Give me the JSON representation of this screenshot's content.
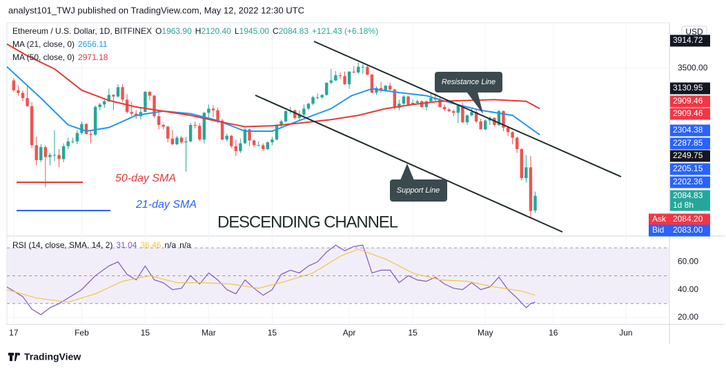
{
  "header": "analyst101_TWJ published on TradingView.com, May 12, 2022 12:30 UTC",
  "footer": "TradingView",
  "annotations": {
    "sma50": "50-day SMA",
    "sma21": "21-day SMA",
    "channel": "DESCENDING CHANNEL",
    "resistance": "Resistance Line",
    "support": "Support Line"
  },
  "chart_data": {
    "type": "candlestick",
    "symbol": "Ethereum / U.S. Dollar, 1D, BITFINEX",
    "ohlc_legend": [
      {
        "key": "O",
        "label": "1963.90"
      },
      {
        "key": "H",
        "label": "2120.40"
      },
      {
        "key": "L",
        "label": "1945.00"
      },
      {
        "key": "C",
        "label": "2084.83"
      }
    ],
    "change": "+121.43 (+6.18%)",
    "currency": "USD",
    "up_color": "#26a69a",
    "down_color": "#ef5350",
    "x": [
      0,
      1,
      2,
      3,
      4,
      5,
      6,
      7,
      8,
      9,
      10,
      11,
      12,
      13,
      14,
      15,
      16,
      17,
      18,
      19,
      20,
      21,
      22,
      23,
      24,
      25,
      26,
      27,
      28,
      29,
      30,
      31,
      32,
      33,
      34,
      35,
      36,
      37,
      38,
      39,
      40,
      41,
      42,
      43,
      44,
      45,
      46,
      47,
      48,
      49,
      50,
      51,
      52,
      53,
      54,
      55,
      56,
      57,
      58,
      59,
      60,
      61,
      62,
      63,
      64,
      65,
      66,
      67,
      68,
      69,
      70,
      71,
      72,
      73,
      74,
      75,
      76,
      77,
      78,
      79,
      80,
      81,
      82,
      83,
      84,
      85,
      86,
      87,
      88,
      89,
      90,
      91,
      92,
      93,
      94,
      95,
      96,
      97,
      98,
      99,
      100,
      101,
      102,
      103,
      104,
      105,
      106,
      107,
      108,
      109,
      110,
      111,
      112,
      113,
      114,
      115
    ],
    "ohlc": [
      [
        3330,
        3360,
        3180,
        3200
      ],
      [
        3200,
        3260,
        3130,
        3165
      ],
      [
        3165,
        3200,
        3060,
        3100
      ],
      [
        3100,
        3270,
        2990,
        3000
      ],
      [
        3000,
        3050,
        2530,
        2560
      ],
      [
        2560,
        2650,
        2360,
        2410
      ],
      [
        2410,
        2570,
        2390,
        2540
      ],
      [
        2540,
        2560,
        2160,
        2440
      ],
      [
        2440,
        2480,
        2360,
        2460
      ],
      [
        2460,
        2720,
        2400,
        2460
      ],
      [
        2460,
        2520,
        2340,
        2420
      ],
      [
        2420,
        2580,
        2390,
        2550
      ],
      [
        2550,
        2640,
        2520,
        2600
      ],
      [
        2600,
        2640,
        2580,
        2600
      ],
      [
        2600,
        2720,
        2570,
        2690
      ],
      [
        2690,
        2820,
        2670,
        2790
      ],
      [
        2790,
        2800,
        2670,
        2680
      ],
      [
        2680,
        2720,
        2580,
        2670
      ],
      [
        2670,
        3010,
        2660,
        2990
      ],
      [
        2990,
        3040,
        2950,
        3020
      ],
      [
        3020,
        3080,
        2980,
        3060
      ],
      [
        3060,
        3220,
        3050,
        3140
      ],
      [
        3140,
        3150,
        2950,
        3120
      ],
      [
        3120,
        3280,
        3110,
        3240
      ],
      [
        3240,
        3280,
        3050,
        3080
      ],
      [
        3080,
        3150,
        2910,
        2930
      ],
      [
        2930,
        3050,
        2880,
        2910
      ],
      [
        2910,
        2950,
        2850,
        2880
      ],
      [
        2880,
        2980,
        2840,
        2930
      ],
      [
        2930,
        3190,
        2930,
        3180
      ],
      [
        3180,
        3190,
        3070,
        3130
      ],
      [
        3130,
        3140,
        2860,
        2880
      ],
      [
        2880,
        2940,
        2730,
        2780
      ],
      [
        2780,
        2790,
        2730,
        2760
      ],
      [
        2760,
        2770,
        2590,
        2630
      ],
      [
        2630,
        2720,
        2560,
        2570
      ],
      [
        2570,
        2660,
        2560,
        2640
      ],
      [
        2640,
        2660,
        2570,
        2590
      ],
      [
        2590,
        2650,
        2300,
        2600
      ],
      [
        2600,
        2800,
        2590,
        2780
      ],
      [
        2780,
        2820,
        2740,
        2770
      ],
      [
        2770,
        2800,
        2600,
        2620
      ],
      [
        2620,
        2930,
        2580,
        2920
      ],
      [
        2920,
        3020,
        2860,
        2970
      ],
      [
        2970,
        3010,
        2870,
        2950
      ],
      [
        2950,
        2980,
        2800,
        2830
      ],
      [
        2830,
        2850,
        2610,
        2620
      ],
      [
        2620,
        2680,
        2600,
        2660
      ],
      [
        2660,
        2670,
        2530,
        2550
      ],
      [
        2550,
        2620,
        2450,
        2500
      ],
      [
        2500,
        2630,
        2480,
        2580
      ],
      [
        2580,
        2760,
        2570,
        2730
      ],
      [
        2730,
        2740,
        2550,
        2610
      ],
      [
        2610,
        2620,
        2540,
        2560
      ],
      [
        2560,
        2600,
        2550,
        2560
      ],
      [
        2560,
        2580,
        2500,
        2520
      ],
      [
        2520,
        2600,
        2510,
        2590
      ],
      [
        2590,
        2650,
        2560,
        2620
      ],
      [
        2620,
        2790,
        2610,
        2770
      ],
      [
        2770,
        2840,
        2760,
        2820
      ],
      [
        2820,
        2950,
        2810,
        2940
      ],
      [
        2940,
        2990,
        2910,
        2950
      ],
      [
        2950,
        2960,
        2840,
        2860
      ],
      [
        2860,
        2950,
        2830,
        2900
      ],
      [
        2900,
        3020,
        2880,
        2970
      ],
      [
        2970,
        3040,
        2950,
        3030
      ],
      [
        3030,
        3130,
        3010,
        3110
      ],
      [
        3110,
        3160,
        3080,
        3110
      ],
      [
        3110,
        3150,
        3090,
        3140
      ],
      [
        3140,
        3300,
        3130,
        3300
      ],
      [
        3300,
        3490,
        3280,
        3330
      ],
      [
        3330,
        3460,
        3320,
        3400
      ],
      [
        3400,
        3440,
        3350,
        3390
      ],
      [
        3390,
        3450,
        3270,
        3280
      ],
      [
        3280,
        3460,
        3220,
        3450
      ],
      [
        3450,
        3530,
        3430,
        3440
      ],
      [
        3440,
        3580,
        3420,
        3520
      ],
      [
        3520,
        3560,
        3420,
        3520
      ],
      [
        3520,
        3550,
        3400,
        3410
      ],
      [
        3410,
        3420,
        3160,
        3170
      ],
      [
        3170,
        3250,
        3140,
        3230
      ],
      [
        3230,
        3310,
        3170,
        3190
      ],
      [
        3190,
        3270,
        3180,
        3260
      ],
      [
        3260,
        3300,
        3200,
        3210
      ],
      [
        3210,
        3220,
        2960,
        2980
      ],
      [
        2980,
        3080,
        2950,
        3030
      ],
      [
        3030,
        3140,
        3010,
        3120
      ],
      [
        3120,
        3130,
        3000,
        3020
      ],
      [
        3020,
        3080,
        3020,
        3040
      ],
      [
        3040,
        3080,
        3030,
        3060
      ],
      [
        3060,
        3070,
        2980,
        2990
      ],
      [
        2990,
        3070,
        2950,
        3060
      ],
      [
        3060,
        3170,
        3050,
        3100
      ],
      [
        3100,
        3160,
        3050,
        3080
      ],
      [
        3080,
        3120,
        2980,
        2990
      ],
      [
        2990,
        3020,
        2940,
        2960
      ],
      [
        2960,
        2980,
        2930,
        2940
      ],
      [
        2940,
        2960,
        2880,
        2920
      ],
      [
        2920,
        3020,
        2800,
        3010
      ],
      [
        3010,
        3040,
        2800,
        2810
      ],
      [
        2810,
        2900,
        2780,
        2890
      ],
      [
        2890,
        2980,
        2880,
        2930
      ],
      [
        2930,
        2970,
        2800,
        2820
      ],
      [
        2820,
        2850,
        2730,
        2730
      ],
      [
        2730,
        2840,
        2720,
        2830
      ],
      [
        2830,
        2880,
        2780,
        2860
      ],
      [
        2860,
        2870,
        2760,
        2780
      ],
      [
        2780,
        2960,
        2770,
        2940
      ],
      [
        2940,
        2950,
        2710,
        2750
      ],
      [
        2750,
        2760,
        2660,
        2700
      ],
      [
        2700,
        2710,
        2570,
        2640
      ],
      [
        2640,
        2650,
        2480,
        2520
      ],
      [
        2520,
        2530,
        2220,
        2240
      ],
      [
        2240,
        2460,
        2200,
        2340
      ],
      [
        2340,
        2450,
        1900,
        1960
      ],
      [
        1963.9,
        2120.4,
        1945,
        2084.83
      ]
    ],
    "xlim": [
      -1.5,
      144.6
    ],
    "xticks": [
      {
        "value": 0,
        "label": "17"
      },
      {
        "value": 15,
        "label": "Feb"
      },
      {
        "value": 29,
        "label": "15"
      },
      {
        "value": 43,
        "label": "Mar"
      },
      {
        "value": 57,
        "label": "15"
      },
      {
        "value": 74,
        "label": "Apr"
      },
      {
        "value": 88,
        "label": "15"
      },
      {
        "value": 104,
        "label": "May"
      },
      {
        "value": 119,
        "label": "16"
      },
      {
        "value": 135,
        "label": "Jun"
      }
    ],
    "ylim": [
      1780,
      4150
    ],
    "log": true,
    "yticks": [
      {
        "value": 3500,
        "label": "3500.00"
      }
    ],
    "price_tags": [
      {
        "label": "3914.72",
        "color": "#131722"
      },
      {
        "label": "3130.95",
        "color": "#131722"
      },
      {
        "label": "2909.46",
        "color": "#f23645"
      },
      {
        "label": "2909.46",
        "color": "#f23645"
      },
      {
        "label": "2304.38",
        "color": "#2962ff"
      },
      {
        "label": "2287.85",
        "color": "#2962ff"
      },
      {
        "label": "2249.75",
        "color": "#131722"
      },
      {
        "label": "2205.15",
        "color": "#2962ff"
      },
      {
        "label": "2202.36",
        "color": "#2962ff"
      },
      {
        "label": "2084.83",
        "sub": "1d 8h",
        "color": "#26a69a"
      },
      {
        "name": "Ask",
        "label": "2084.20",
        "color": "#f23645"
      },
      {
        "name": "Bid",
        "label": "2083.00",
        "color": "#2962ff"
      }
    ],
    "series": [
      {
        "name": "MA (21, close, 0)",
        "value_label": "2656.11",
        "color": "#2196f3",
        "x": [
          -1.5,
          6,
          12,
          16,
          21,
          27,
          33,
          39,
          45,
          51,
          57,
          63,
          70,
          74.5,
          79,
          85,
          91,
          97,
          103,
          110,
          116
        ],
        "values": [
          3520,
          3100,
          2780,
          2710,
          2750,
          2890,
          2940,
          2910,
          2830,
          2710,
          2710,
          2830,
          2970,
          3130,
          3220,
          3170,
          3130,
          3030,
          2950,
          2890,
          2670
        ]
      },
      {
        "name": "MA (50, close, 0)",
        "value_label": "2971.18",
        "color": "#e53935",
        "x": [
          -1.5,
          3,
          9,
          15,
          21,
          27,
          33,
          39,
          45,
          51,
          57,
          63,
          70,
          76,
          82,
          88,
          94,
          100,
          106,
          113,
          116
        ],
        "values": [
          3860,
          3680,
          3490,
          3200,
          3070,
          2990,
          2940,
          2890,
          2820,
          2760,
          2770,
          2800,
          2840,
          2890,
          2970,
          3020,
          3060,
          3070,
          3080,
          3060,
          2970
        ]
      }
    ],
    "rsi": {
      "title": "RSI (14, close, SMA, 14, 2)",
      "value_labels": [
        {
          "label": "31.04",
          "color": "#7e57c2"
        },
        {
          "label": "36.46",
          "color": "#f5c542"
        },
        {
          "label": "n/a",
          "color": "#131722"
        },
        {
          "label": "n/a",
          "color": "#131722"
        }
      ],
      "ylim": [
        15,
        78
      ],
      "yticks": [
        {
          "value": 60,
          "label": "60.00"
        },
        {
          "value": 40,
          "label": "40.00"
        },
        {
          "value": 20,
          "label": "20.00"
        }
      ],
      "band": [
        30,
        70
      ],
      "levels": [
        30,
        50,
        70
      ],
      "series": [
        {
          "color": "#7e57c2",
          "x": [
            -1.5,
            2,
            4,
            6,
            8,
            10,
            12,
            15,
            18,
            21,
            23,
            25,
            27,
            29,
            31,
            33,
            35,
            37,
            39,
            41,
            43,
            45,
            47,
            49,
            51,
            53,
            55,
            57,
            59,
            61,
            63,
            65,
            67,
            69,
            71,
            73,
            75,
            77,
            79,
            81,
            83,
            85,
            87,
            89,
            91,
            93,
            95,
            97,
            99,
            101,
            103,
            105,
            107,
            109,
            111,
            113,
            114,
            115
          ],
          "values": [
            42,
            35,
            26,
            22,
            27,
            30,
            34,
            40,
            50,
            57,
            60,
            51,
            47,
            57,
            47,
            45,
            40,
            41,
            50,
            44,
            52,
            47,
            40,
            37,
            47,
            41,
            36,
            40,
            51,
            54,
            52,
            57,
            60,
            67,
            72,
            68,
            71,
            72,
            52,
            54,
            54,
            45,
            50,
            47,
            46,
            49,
            44,
            41,
            40,
            45,
            40,
            42,
            49,
            40,
            34,
            27,
            30,
            31
          ]
        },
        {
          "color": "#f5c542",
          "x": [
            -1.5,
            5,
            12,
            18,
            24,
            30,
            36,
            42,
            48,
            54,
            60,
            66,
            72,
            76,
            82,
            88,
            94,
            100,
            106,
            112,
            115
          ],
          "values": [
            40,
            34,
            31,
            37,
            46,
            50,
            45,
            45,
            44,
            41,
            46,
            52,
            64,
            69,
            62,
            52,
            47,
            46,
            42,
            39,
            36
          ]
        }
      ]
    }
  }
}
